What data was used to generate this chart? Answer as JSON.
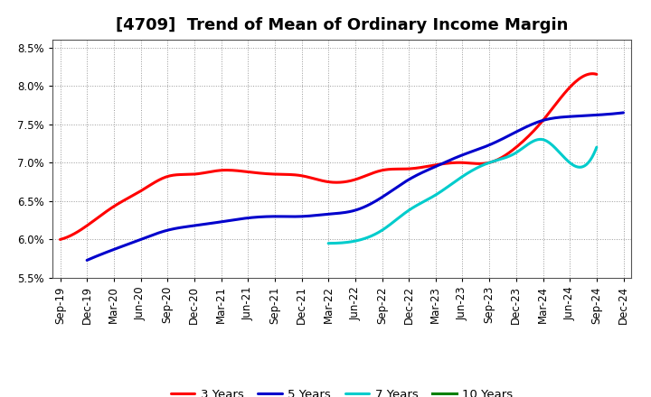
{
  "title": "[4709]  Trend of Mean of Ordinary Income Margin",
  "x_labels": [
    "Sep-19",
    "Dec-19",
    "Mar-20",
    "Jun-20",
    "Sep-20",
    "Dec-20",
    "Mar-21",
    "Jun-21",
    "Sep-21",
    "Dec-21",
    "Mar-22",
    "Jun-22",
    "Sep-22",
    "Dec-22",
    "Mar-23",
    "Jun-23",
    "Sep-23",
    "Dec-23",
    "Mar-24",
    "Jun-24",
    "Sep-24",
    "Dec-24"
  ],
  "ylim": [
    0.055,
    0.086
  ],
  "yticks": [
    0.055,
    0.06,
    0.065,
    0.07,
    0.075,
    0.08,
    0.085
  ],
  "ytick_labels": [
    "5.5%",
    "6.0%",
    "6.5%",
    "7.0%",
    "7.5%",
    "8.0%",
    "8.5%"
  ],
  "series": {
    "3 Years": {
      "color": "#FF0000",
      "data_x": [
        "Sep-19",
        "Dec-19",
        "Mar-20",
        "Jun-20",
        "Sep-20",
        "Dec-20",
        "Mar-21",
        "Jun-21",
        "Sep-21",
        "Dec-21",
        "Mar-22",
        "Jun-22",
        "Sep-22",
        "Dec-22",
        "Mar-23",
        "Jun-23",
        "Sep-23",
        "Dec-23",
        "Mar-24",
        "Jun-24",
        "Sep-24"
      ],
      "data_y": [
        0.06,
        0.0618,
        0.0643,
        0.0663,
        0.0682,
        0.0685,
        0.069,
        0.0688,
        0.0685,
        0.0683,
        0.0675,
        0.0678,
        0.069,
        0.0692,
        0.0697,
        0.07,
        0.07,
        0.072,
        0.0755,
        0.0798,
        0.0815
      ]
    },
    "5 Years": {
      "color": "#0000CC",
      "data_x": [
        "Dec-19",
        "Mar-20",
        "Jun-20",
        "Sep-20",
        "Dec-20",
        "Mar-21",
        "Jun-21",
        "Sep-21",
        "Dec-21",
        "Mar-22",
        "Jun-22",
        "Sep-22",
        "Dec-22",
        "Mar-23",
        "Jun-23",
        "Sep-23",
        "Dec-23",
        "Mar-24",
        "Jun-24",
        "Sep-24",
        "Dec-24"
      ],
      "data_y": [
        0.0573,
        0.0587,
        0.06,
        0.0612,
        0.0618,
        0.0623,
        0.0628,
        0.063,
        0.063,
        0.0633,
        0.0638,
        0.0655,
        0.0678,
        0.0695,
        0.071,
        0.0723,
        0.074,
        0.0755,
        0.076,
        0.0762,
        0.0765
      ]
    },
    "7 Years": {
      "color": "#00CCCC",
      "data_x": [
        "Mar-22",
        "Jun-22",
        "Sep-22",
        "Dec-22",
        "Mar-23",
        "Jun-23",
        "Sep-23",
        "Dec-23",
        "Mar-24",
        "Jun-24",
        "Sep-24"
      ],
      "data_y": [
        0.0595,
        0.0598,
        0.0612,
        0.0638,
        0.0658,
        0.0682,
        0.07,
        0.0713,
        0.073,
        0.07,
        0.072
      ]
    },
    "10 Years": {
      "color": "#008000",
      "data_x": [],
      "data_y": []
    }
  },
  "legend_order": [
    "3 Years",
    "5 Years",
    "7 Years",
    "10 Years"
  ],
  "background_color": "#FFFFFF",
  "grid_color": "#AAAAAA",
  "title_fontsize": 13,
  "tick_fontsize": 8.5,
  "legend_fontsize": 9.5,
  "linewidth": 2.2
}
